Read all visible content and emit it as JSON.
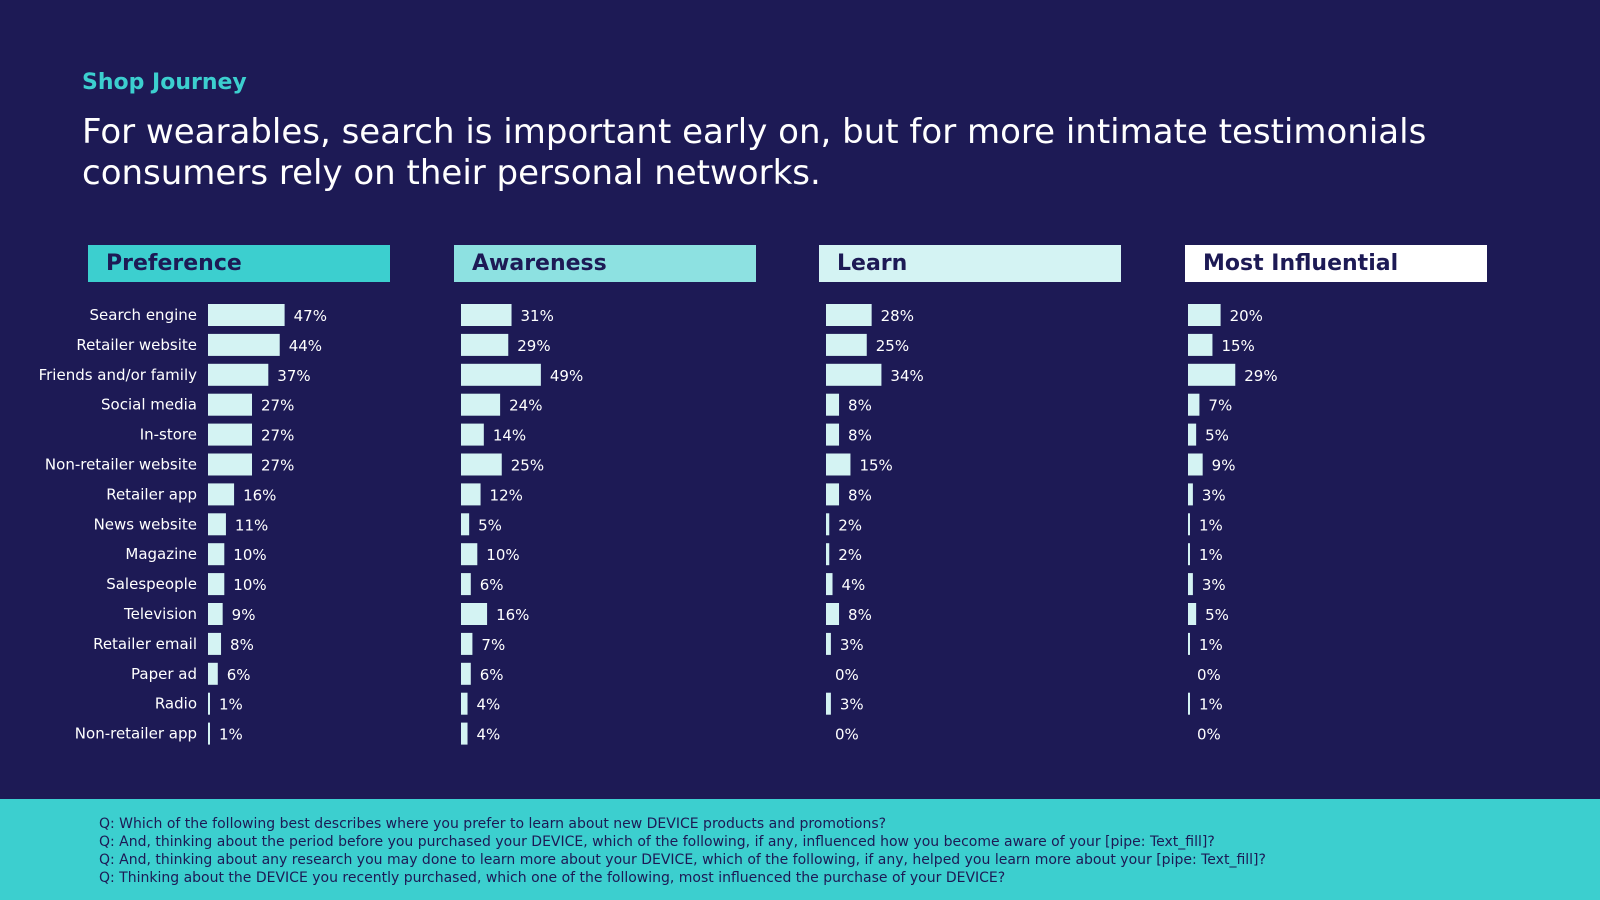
{
  "header": {
    "eyebrow": "Shop Journey",
    "headline_line1": "For wearables, search is important early on, but for more intimate testimonials",
    "headline_line2": "consumers rely on their personal networks."
  },
  "chart_data": {
    "type": "bar",
    "orientation": "horizontal",
    "unit": "%",
    "categories": [
      "Search engine",
      "Retailer website",
      "Friends and/or family",
      "Social media",
      "In-store",
      "Non-retailer website",
      "Retailer app",
      "News website",
      "Magazine",
      "Salespeople",
      "Television",
      "Retailer email",
      "Paper ad",
      "Radio",
      "Non-retailer app"
    ],
    "series": [
      {
        "name": "Preference",
        "color": "#3ccfcf",
        "values": [
          47,
          44,
          37,
          27,
          27,
          27,
          16,
          11,
          10,
          10,
          9,
          8,
          6,
          1,
          1
        ]
      },
      {
        "name": "Awareness",
        "color": "#8de1e1",
        "values": [
          31,
          29,
          49,
          24,
          14,
          25,
          12,
          5,
          10,
          6,
          16,
          7,
          6,
          4,
          4
        ]
      },
      {
        "name": "Learn",
        "color": "#d4f3f3",
        "values": [
          28,
          25,
          34,
          8,
          8,
          15,
          8,
          2,
          2,
          4,
          8,
          3,
          0,
          3,
          0
        ]
      },
      {
        "name": "Most Influential",
        "color": "#ffffff",
        "values": [
          20,
          15,
          29,
          7,
          5,
          9,
          3,
          1,
          1,
          3,
          5,
          1,
          0,
          1,
          0
        ]
      }
    ],
    "bar_color": "#d4f3f3",
    "label_color": "#ffffff"
  },
  "footer": {
    "questions": [
      "Q: Which of the following best describes where you prefer to learn about new DEVICE products and promotions?",
      "Q: And, thinking about the period before you purchased your DEVICE, which of the following, if any, influenced how you become aware of your [pipe: Text_fill]?",
      "Q: And, thinking about any research you may done to learn more about your DEVICE, which of the following, if any, helped you learn more about your [pipe: Text_fill]?",
      "Q: Thinking about the DEVICE you recently purchased, which one of the following, most influenced the purchase of your DEVICE?"
    ]
  }
}
